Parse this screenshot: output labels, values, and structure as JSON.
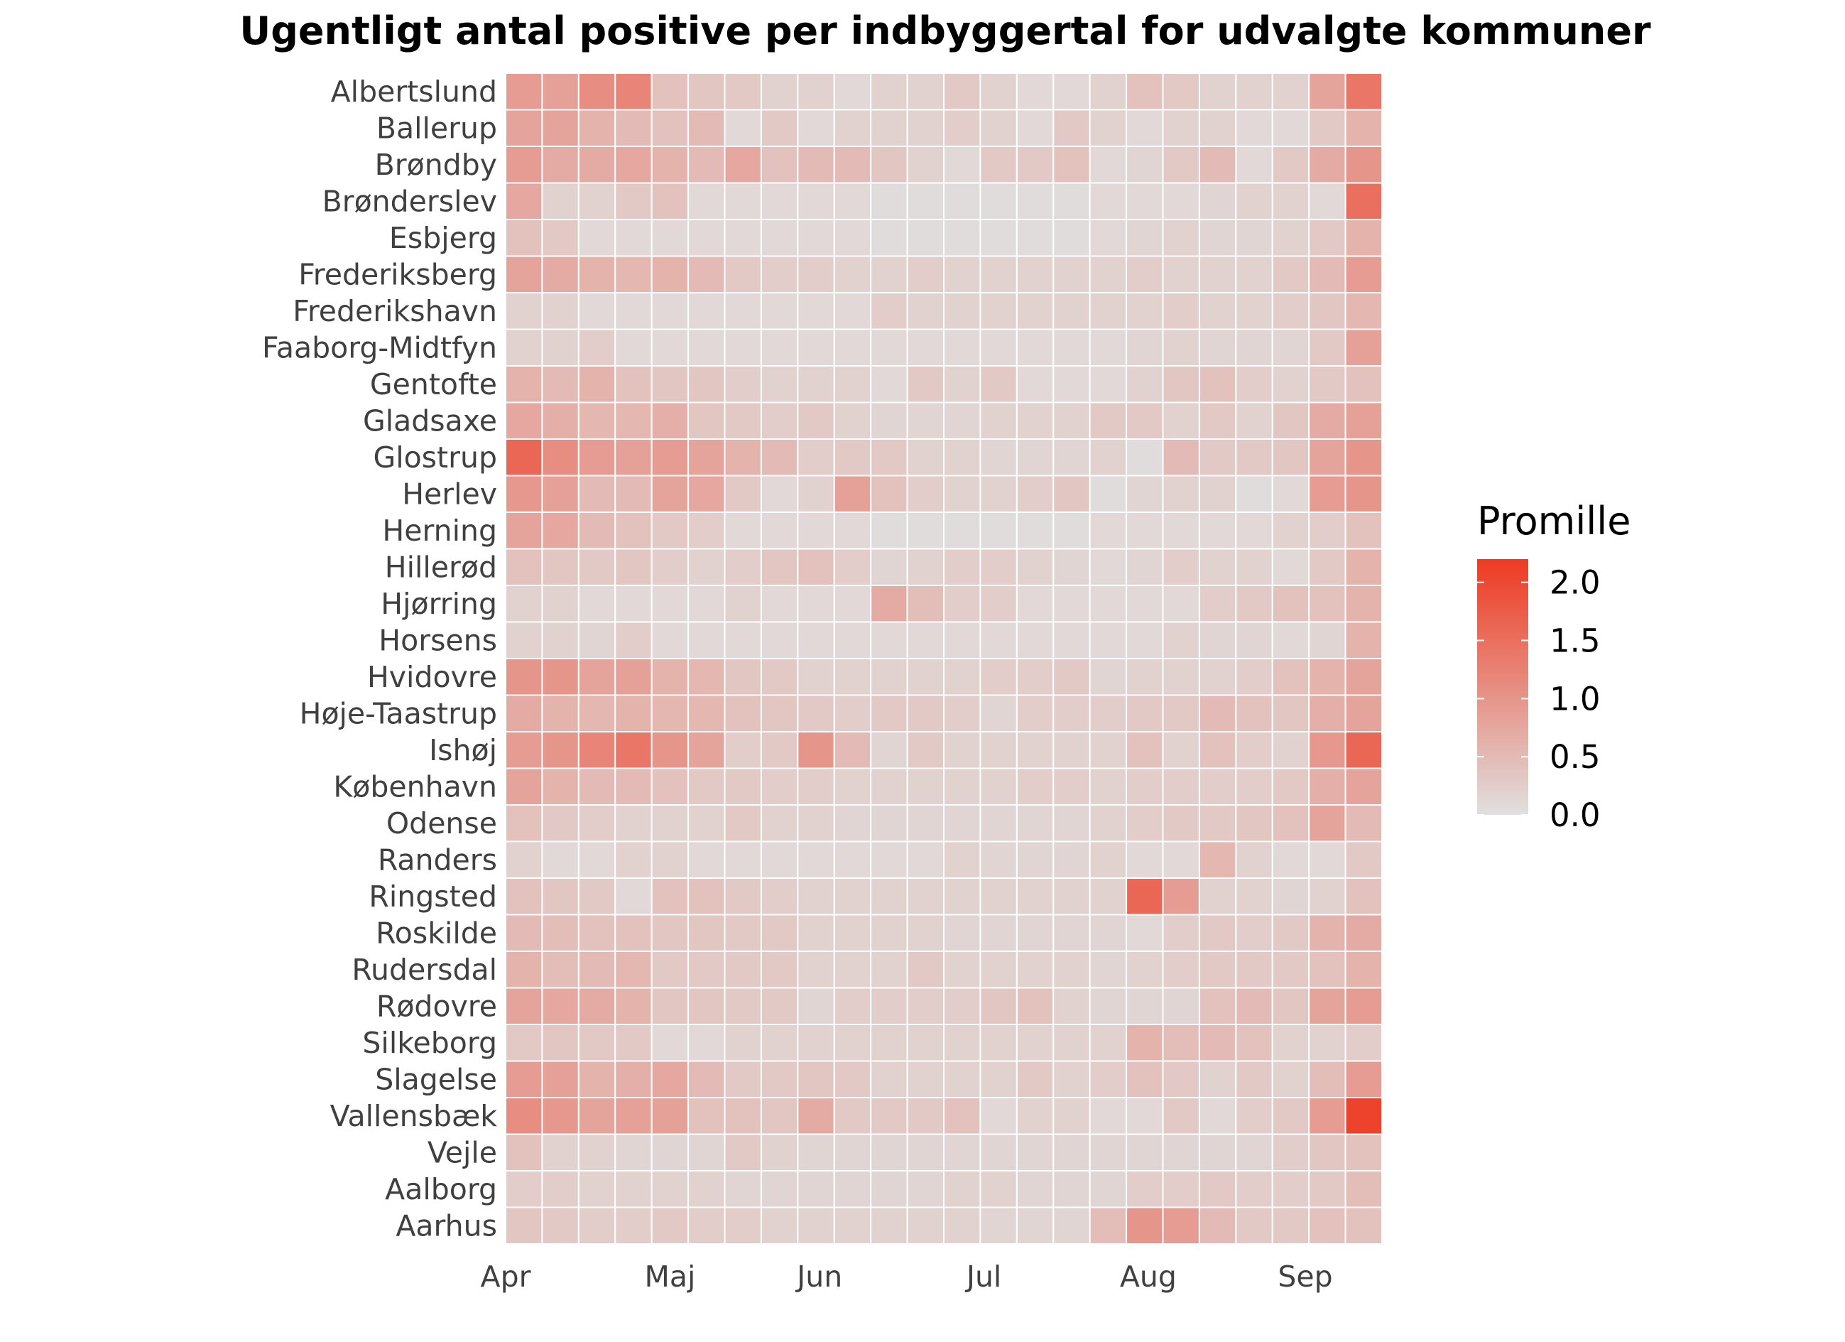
{
  "chart_data": {
    "type": "heatmap",
    "title": "Ugentligt antal positive per indbyggertal for udvalgte kommuner",
    "xlabel": "",
    "ylabel": "",
    "x_tick_labels": [
      "Apr",
      "Maj",
      "Jun",
      "Jul",
      "Aug",
      "Sep"
    ],
    "weeks": 24,
    "rows": [
      "Albertslund",
      "Ballerup",
      "Brøndby",
      "Brønderslev",
      "Esbjerg",
      "Frederiksberg",
      "Frederikshavn",
      "Faaborg-Midtfyn",
      "Gentofte",
      "Gladsaxe",
      "Glostrup",
      "Herlev",
      "Herning",
      "Hillerød",
      "Hjørring",
      "Horsens",
      "Hvidovre",
      "Høje-Taastrup",
      "Ishøj",
      "København",
      "Odense",
      "Randers",
      "Ringsted",
      "Roskilde",
      "Rudersdal",
      "Rødovre",
      "Silkeborg",
      "Slagelse",
      "Vallensbæk",
      "Vejle",
      "Aalborg",
      "Aarhus"
    ],
    "values": [
      [
        0.9,
        0.85,
        1.1,
        1.2,
        0.4,
        0.35,
        0.3,
        0.2,
        0.2,
        0.1,
        0.2,
        0.2,
        0.3,
        0.2,
        0.1,
        0.1,
        0.2,
        0.4,
        0.3,
        0.2,
        0.2,
        0.2,
        0.8,
        1.4
      ],
      [
        0.8,
        0.8,
        0.6,
        0.5,
        0.4,
        0.5,
        0.1,
        0.3,
        0.1,
        0.2,
        0.2,
        0.2,
        0.25,
        0.2,
        0.1,
        0.3,
        0.2,
        0.1,
        0.2,
        0.2,
        0.1,
        0.1,
        0.3,
        0.6
      ],
      [
        0.9,
        0.7,
        0.7,
        0.75,
        0.6,
        0.5,
        0.75,
        0.4,
        0.5,
        0.5,
        0.35,
        0.2,
        0.1,
        0.3,
        0.3,
        0.4,
        0.1,
        0.15,
        0.3,
        0.5,
        0.1,
        0.3,
        0.7,
        1.0
      ],
      [
        0.75,
        0.2,
        0.2,
        0.3,
        0.4,
        0.1,
        0.1,
        0.1,
        0.1,
        0.1,
        0.05,
        0.05,
        0.05,
        0.05,
        0.05,
        0.05,
        0.1,
        0.1,
        0.1,
        0.15,
        0.2,
        0.2,
        0.1,
        1.5
      ],
      [
        0.4,
        0.3,
        0.1,
        0.1,
        0.1,
        0.1,
        0.1,
        0.1,
        0.1,
        0.1,
        0.05,
        0.05,
        0.05,
        0.05,
        0.05,
        0.05,
        0.1,
        0.15,
        0.2,
        0.15,
        0.15,
        0.2,
        0.3,
        0.6
      ],
      [
        0.8,
        0.7,
        0.6,
        0.55,
        0.6,
        0.5,
        0.3,
        0.25,
        0.25,
        0.2,
        0.2,
        0.25,
        0.2,
        0.2,
        0.2,
        0.2,
        0.2,
        0.25,
        0.2,
        0.2,
        0.2,
        0.3,
        0.5,
        0.9
      ],
      [
        0.2,
        0.2,
        0.1,
        0.1,
        0.1,
        0.1,
        0.1,
        0.1,
        0.1,
        0.1,
        0.25,
        0.2,
        0.2,
        0.2,
        0.2,
        0.2,
        0.2,
        0.2,
        0.25,
        0.2,
        0.2,
        0.25,
        0.35,
        0.55
      ],
      [
        0.2,
        0.2,
        0.25,
        0.1,
        0.1,
        0.1,
        0.1,
        0.1,
        0.1,
        0.1,
        0.1,
        0.1,
        0.1,
        0.1,
        0.1,
        0.1,
        0.1,
        0.15,
        0.2,
        0.15,
        0.15,
        0.15,
        0.3,
        0.85
      ],
      [
        0.6,
        0.5,
        0.6,
        0.4,
        0.35,
        0.35,
        0.25,
        0.2,
        0.2,
        0.2,
        0.1,
        0.3,
        0.2,
        0.3,
        0.1,
        0.1,
        0.1,
        0.2,
        0.35,
        0.4,
        0.25,
        0.2,
        0.3,
        0.4
      ],
      [
        0.75,
        0.65,
        0.55,
        0.55,
        0.65,
        0.35,
        0.3,
        0.25,
        0.3,
        0.2,
        0.15,
        0.15,
        0.15,
        0.2,
        0.2,
        0.2,
        0.3,
        0.3,
        0.2,
        0.3,
        0.2,
        0.35,
        0.7,
        0.85
      ],
      [
        1.6,
        1.1,
        0.9,
        0.85,
        0.9,
        0.8,
        0.6,
        0.5,
        0.25,
        0.3,
        0.3,
        0.2,
        0.2,
        0.15,
        0.15,
        0.15,
        0.2,
        0.05,
        0.5,
        0.3,
        0.3,
        0.35,
        0.8,
        1.0
      ],
      [
        0.95,
        0.85,
        0.5,
        0.5,
        0.8,
        0.75,
        0.3,
        0.1,
        0.2,
        0.85,
        0.4,
        0.25,
        0.2,
        0.2,
        0.25,
        0.35,
        0.05,
        0.15,
        0.2,
        0.2,
        0.05,
        0.1,
        0.9,
        1.0
      ],
      [
        0.8,
        0.75,
        0.5,
        0.4,
        0.3,
        0.25,
        0.1,
        0.1,
        0.1,
        0.1,
        0.05,
        0.05,
        0.05,
        0.05,
        0.05,
        0.05,
        0.1,
        0.1,
        0.1,
        0.1,
        0.1,
        0.2,
        0.25,
        0.4
      ],
      [
        0.4,
        0.35,
        0.3,
        0.35,
        0.25,
        0.2,
        0.25,
        0.35,
        0.4,
        0.25,
        0.15,
        0.2,
        0.25,
        0.25,
        0.2,
        0.15,
        0.1,
        0.15,
        0.25,
        0.2,
        0.2,
        0.1,
        0.3,
        0.6
      ],
      [
        0.2,
        0.2,
        0.1,
        0.1,
        0.1,
        0.1,
        0.2,
        0.1,
        0.1,
        0.1,
        0.7,
        0.45,
        0.25,
        0.25,
        0.1,
        0.1,
        0.1,
        0.1,
        0.1,
        0.25,
        0.3,
        0.4,
        0.4,
        0.6
      ],
      [
        0.2,
        0.2,
        0.15,
        0.25,
        0.1,
        0.1,
        0.1,
        0.1,
        0.1,
        0.1,
        0.1,
        0.1,
        0.1,
        0.1,
        0.1,
        0.1,
        0.1,
        0.1,
        0.2,
        0.15,
        0.15,
        0.1,
        0.15,
        0.6
      ],
      [
        1.0,
        1.0,
        0.8,
        0.85,
        0.6,
        0.55,
        0.35,
        0.3,
        0.2,
        0.2,
        0.2,
        0.2,
        0.2,
        0.25,
        0.25,
        0.3,
        0.15,
        0.2,
        0.2,
        0.2,
        0.25,
        0.4,
        0.6,
        0.8
      ],
      [
        0.7,
        0.6,
        0.55,
        0.6,
        0.55,
        0.55,
        0.4,
        0.35,
        0.3,
        0.25,
        0.3,
        0.3,
        0.25,
        0.15,
        0.25,
        0.25,
        0.25,
        0.3,
        0.3,
        0.5,
        0.4,
        0.35,
        0.65,
        0.8
      ],
      [
        0.9,
        1.0,
        1.2,
        1.4,
        1.0,
        0.8,
        0.25,
        0.3,
        1.0,
        0.5,
        0.15,
        0.3,
        0.2,
        0.2,
        0.2,
        0.2,
        0.2,
        0.4,
        0.2,
        0.4,
        0.25,
        0.2,
        0.95,
        1.6
      ],
      [
        0.8,
        0.6,
        0.5,
        0.5,
        0.4,
        0.3,
        0.3,
        0.25,
        0.25,
        0.2,
        0.2,
        0.2,
        0.2,
        0.2,
        0.25,
        0.25,
        0.2,
        0.25,
        0.25,
        0.25,
        0.25,
        0.3,
        0.65,
        0.8
      ],
      [
        0.4,
        0.3,
        0.25,
        0.2,
        0.2,
        0.2,
        0.3,
        0.2,
        0.2,
        0.15,
        0.15,
        0.15,
        0.15,
        0.15,
        0.15,
        0.15,
        0.2,
        0.25,
        0.3,
        0.3,
        0.35,
        0.4,
        0.8,
        0.5
      ],
      [
        0.2,
        0.1,
        0.1,
        0.2,
        0.2,
        0.1,
        0.1,
        0.1,
        0.1,
        0.1,
        0.1,
        0.1,
        0.2,
        0.15,
        0.15,
        0.15,
        0.2,
        0.1,
        0.1,
        0.55,
        0.2,
        0.1,
        0.1,
        0.3
      ],
      [
        0.4,
        0.35,
        0.3,
        0.1,
        0.4,
        0.4,
        0.3,
        0.25,
        0.2,
        0.2,
        0.2,
        0.2,
        0.2,
        0.2,
        0.2,
        0.2,
        0.2,
        1.6,
        0.9,
        0.2,
        0.2,
        0.15,
        0.2,
        0.4
      ],
      [
        0.5,
        0.45,
        0.4,
        0.4,
        0.35,
        0.35,
        0.3,
        0.3,
        0.2,
        0.2,
        0.2,
        0.2,
        0.15,
        0.15,
        0.15,
        0.15,
        0.15,
        0.1,
        0.25,
        0.3,
        0.25,
        0.3,
        0.6,
        0.7
      ],
      [
        0.6,
        0.45,
        0.5,
        0.55,
        0.3,
        0.3,
        0.3,
        0.3,
        0.2,
        0.2,
        0.2,
        0.3,
        0.2,
        0.2,
        0.2,
        0.2,
        0.15,
        0.2,
        0.25,
        0.3,
        0.3,
        0.3,
        0.4,
        0.6
      ],
      [
        0.8,
        0.75,
        0.7,
        0.6,
        0.35,
        0.35,
        0.3,
        0.3,
        0.15,
        0.25,
        0.25,
        0.25,
        0.25,
        0.35,
        0.4,
        0.2,
        0.15,
        0.15,
        0.15,
        0.4,
        0.5,
        0.35,
        0.8,
        0.9
      ],
      [
        0.3,
        0.35,
        0.3,
        0.3,
        0.1,
        0.1,
        0.2,
        0.2,
        0.2,
        0.2,
        0.2,
        0.2,
        0.2,
        0.2,
        0.2,
        0.2,
        0.2,
        0.6,
        0.45,
        0.5,
        0.4,
        0.2,
        0.2,
        0.25
      ],
      [
        0.9,
        0.85,
        0.6,
        0.65,
        0.75,
        0.5,
        0.3,
        0.3,
        0.35,
        0.3,
        0.2,
        0.2,
        0.2,
        0.2,
        0.3,
        0.2,
        0.25,
        0.4,
        0.3,
        0.2,
        0.3,
        0.2,
        0.45,
        0.9
      ],
      [
        1.1,
        0.95,
        0.8,
        0.85,
        0.85,
        0.4,
        0.4,
        0.35,
        0.7,
        0.3,
        0.3,
        0.3,
        0.4,
        0.1,
        0.2,
        0.2,
        0.1,
        0.1,
        0.3,
        0.1,
        0.25,
        0.3,
        0.9,
        2.1
      ],
      [
        0.4,
        0.2,
        0.2,
        0.15,
        0.15,
        0.15,
        0.3,
        0.2,
        0.15,
        0.15,
        0.15,
        0.15,
        0.15,
        0.15,
        0.15,
        0.15,
        0.15,
        0.15,
        0.15,
        0.15,
        0.15,
        0.25,
        0.35,
        0.4
      ],
      [
        0.25,
        0.25,
        0.2,
        0.2,
        0.2,
        0.2,
        0.15,
        0.15,
        0.15,
        0.15,
        0.15,
        0.15,
        0.2,
        0.2,
        0.15,
        0.15,
        0.15,
        0.25,
        0.25,
        0.3,
        0.25,
        0.25,
        0.3,
        0.45
      ],
      [
        0.35,
        0.3,
        0.25,
        0.25,
        0.3,
        0.25,
        0.25,
        0.2,
        0.2,
        0.2,
        0.2,
        0.2,
        0.2,
        0.15,
        0.15,
        0.15,
        0.45,
        1.0,
        0.9,
        0.5,
        0.3,
        0.3,
        0.4,
        0.4
      ]
    ],
    "colorscale": {
      "low": "#e0e0e0",
      "high": "#ee3a22",
      "min": 0,
      "max": 2.2
    },
    "legend": {
      "title": "Promille",
      "ticks": [
        "2.0",
        "1.5",
        "1.0",
        "0.5",
        "0.0"
      ],
      "tick_values": [
        2.0,
        1.5,
        1.0,
        0.5,
        0.0
      ],
      "position": "right"
    },
    "grid": false
  }
}
